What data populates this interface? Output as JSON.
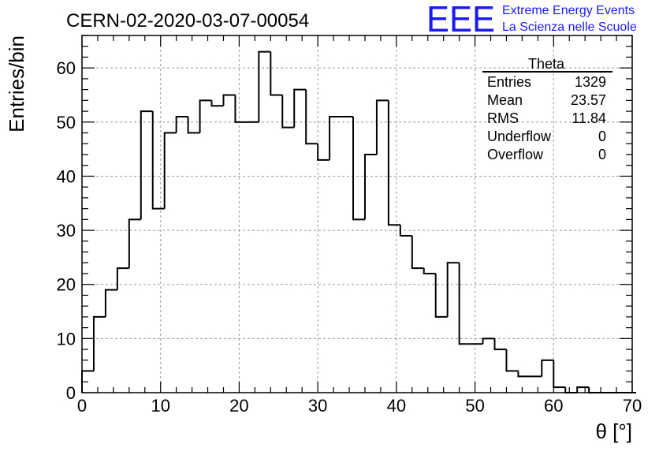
{
  "header": {
    "run_id": "CERN-02-2020-03-07-00054",
    "logo_letters": "EEE",
    "logo_line1": "Extreme Energy Events",
    "logo_line2": "La Scienza nelle Scuole"
  },
  "stats": {
    "title": "Theta",
    "rows": [
      {
        "label": "Entries",
        "value": "1329"
      },
      {
        "label": "Mean",
        "value": "23.57"
      },
      {
        "label": "RMS",
        "value": "11.84"
      },
      {
        "label": "Underflow",
        "value": "0"
      },
      {
        "label": "Overflow",
        "value": "0"
      }
    ]
  },
  "chart_data": {
    "type": "bar",
    "title": "CERN-02-2020-03-07-00054",
    "xlabel": "θ [°]",
    "ylabel": "Entries/bin",
    "xlim": [
      0,
      70
    ],
    "ylim": [
      0,
      66
    ],
    "bin_width": 1.5,
    "bin_start": 0,
    "x_ticks": [
      0,
      10,
      20,
      30,
      40,
      50,
      60,
      70
    ],
    "y_ticks": [
      0,
      10,
      20,
      30,
      40,
      50,
      60
    ],
    "grid": true,
    "legend": "top-right",
    "values": [
      4,
      14,
      19,
      23,
      32,
      52,
      34,
      48,
      51,
      48,
      54,
      53,
      55,
      50,
      50,
      63,
      55,
      49,
      56,
      46,
      43,
      51,
      51,
      32,
      44,
      54,
      31,
      29,
      23,
      22,
      14,
      24,
      9,
      9,
      10,
      8,
      4,
      3,
      3,
      6,
      1,
      0,
      1,
      0,
      0,
      0,
      0
    ]
  }
}
